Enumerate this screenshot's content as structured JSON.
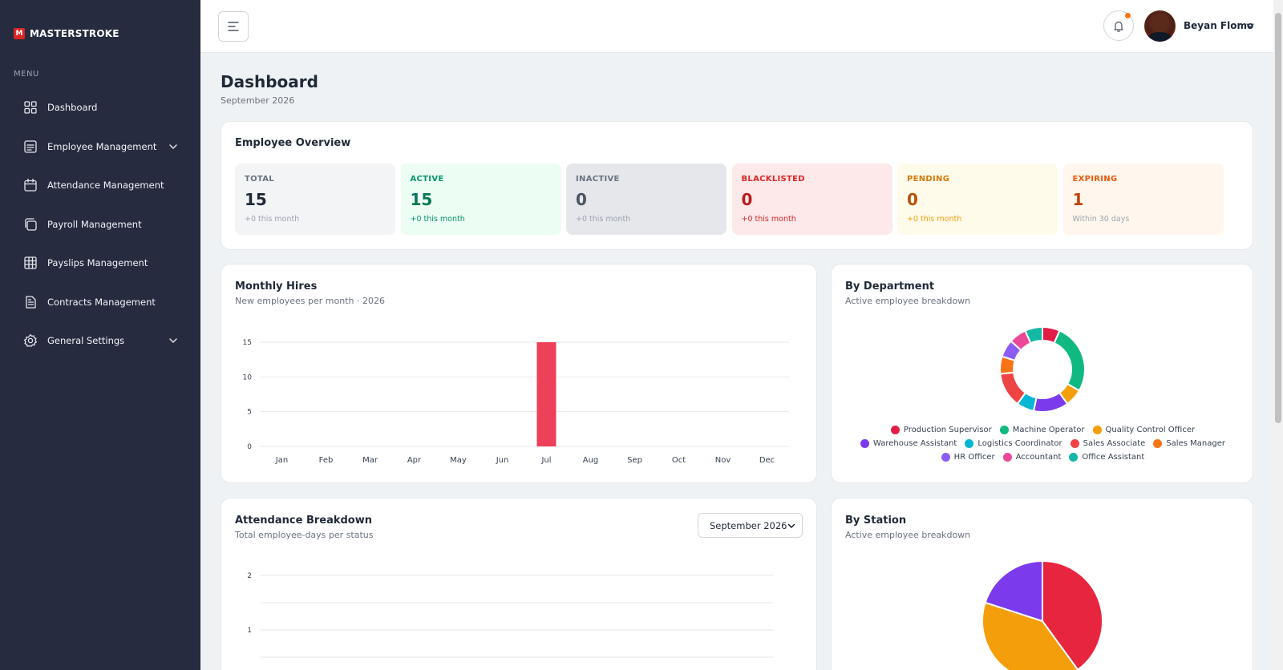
{
  "brand": {
    "mark": "M",
    "name": "MASTERSTROKE"
  },
  "sidebar": {
    "menu_label": "MENU",
    "items": [
      {
        "label": "Dashboard",
        "icon": "grid-icon",
        "expandable": false
      },
      {
        "label": "Employee Management",
        "icon": "list-icon",
        "expandable": true
      },
      {
        "label": "Attendance Management",
        "icon": "calendar-icon",
        "expandable": false
      },
      {
        "label": "Payroll Management",
        "icon": "copy-icon",
        "expandable": false
      },
      {
        "label": "Payslips Management",
        "icon": "table-icon",
        "expandable": false
      },
      {
        "label": "Contracts Management",
        "icon": "document-icon",
        "expandable": false
      },
      {
        "label": "General Settings",
        "icon": "gear-icon",
        "expandable": true
      }
    ]
  },
  "topbar": {
    "user_name": "Beyan Flomo"
  },
  "page": {
    "title": "Dashboard",
    "subtitle": "September 2026"
  },
  "overview": {
    "title": "Employee Overview",
    "stats": [
      {
        "label": "TOTAL",
        "value": "15",
        "foot": "+0 this month",
        "bg": "#f3f4f6",
        "label_color": "#6b7280",
        "value_color": "#1f2937",
        "foot_color": "#9ca3af"
      },
      {
        "label": "ACTIVE",
        "value": "15",
        "foot": "+0 this month",
        "bg": "#ecfdf3",
        "label_color": "#059669",
        "value_color": "#047857",
        "foot_color": "#059669"
      },
      {
        "label": "INACTIVE",
        "value": "0",
        "foot": "+0 this month",
        "bg": "#e5e7eb",
        "label_color": "#6b7280",
        "value_color": "#4b5563",
        "foot_color": "#9ca3af"
      },
      {
        "label": "BLACKLISTED",
        "value": "0",
        "foot": "+0 this month",
        "bg": "#fde8ea",
        "label_color": "#dc2626",
        "value_color": "#b91c1c",
        "foot_color": "#dc2626"
      },
      {
        "label": "PENDING",
        "value": "0",
        "foot": "+0 this month",
        "bg": "#fffbeb",
        "label_color": "#d97706",
        "value_color": "#b45309",
        "foot_color": "#f59e0b"
      },
      {
        "label": "EXPIRING",
        "value": "1",
        "foot": "Within 30 days",
        "bg": "#fff7ed",
        "label_color": "#ea580c",
        "value_color": "#c2410c",
        "foot_color": "#9ca3af"
      }
    ]
  },
  "hires": {
    "title": "Monthly Hires",
    "subtitle": "New employees per month · 2026"
  },
  "department": {
    "title": "By Department",
    "subtitle": "Active employee breakdown"
  },
  "attendance": {
    "title": "Attendance Breakdown",
    "subtitle": "Total employee-days per status",
    "selected_month": "September 2026"
  },
  "station": {
    "title": "By Station",
    "subtitle": "Active employee breakdown"
  },
  "chart_data": [
    {
      "type": "bar",
      "categories": [
        "Jan",
        "Feb",
        "Mar",
        "Apr",
        "May",
        "Jun",
        "Jul",
        "Aug",
        "Sep",
        "Oct",
        "Nov",
        "Dec"
      ],
      "values": [
        0,
        0,
        0,
        0,
        0,
        0,
        15,
        0,
        0,
        0,
        0,
        0
      ],
      "ylim": [
        0,
        15
      ],
      "yticks": [
        "0",
        "5",
        "10",
        "15"
      ],
      "color": "#ef4059",
      "grid": true
    },
    {
      "type": "pie",
      "style": "donut",
      "series": [
        {
          "name": "Production Supervisor",
          "value": 1,
          "color": "#e11d48"
        },
        {
          "name": "Machine Operator",
          "value": 4,
          "color": "#10b981"
        },
        {
          "name": "Quality Control Officer",
          "value": 1,
          "color": "#f59e0b"
        },
        {
          "name": "Warehouse Assistant",
          "value": 2,
          "color": "#7c3aed"
        },
        {
          "name": "Logistics Coordinator",
          "value": 1,
          "color": "#06b6d4"
        },
        {
          "name": "Sales Associate",
          "value": 2,
          "color": "#ef4444"
        },
        {
          "name": "Sales Manager",
          "value": 1,
          "color": "#f97316"
        },
        {
          "name": "HR Officer",
          "value": 1,
          "color": "#8b5cf6"
        },
        {
          "name": "Accountant",
          "value": 1,
          "color": "#ec4899"
        },
        {
          "name": "Office Assistant",
          "value": 1,
          "color": "#14b8a6"
        }
      ],
      "legend": "bottom"
    },
    {
      "type": "bar",
      "yticks": [
        "1",
        "2"
      ],
      "ylim": [
        0,
        2
      ],
      "grid": true
    },
    {
      "type": "pie",
      "series": [
        {
          "value": 6,
          "color": "#e8253f"
        },
        {
          "value": 6,
          "color": "#f59e0b"
        },
        {
          "value": 3,
          "color": "#7c3aed"
        }
      ]
    }
  ]
}
